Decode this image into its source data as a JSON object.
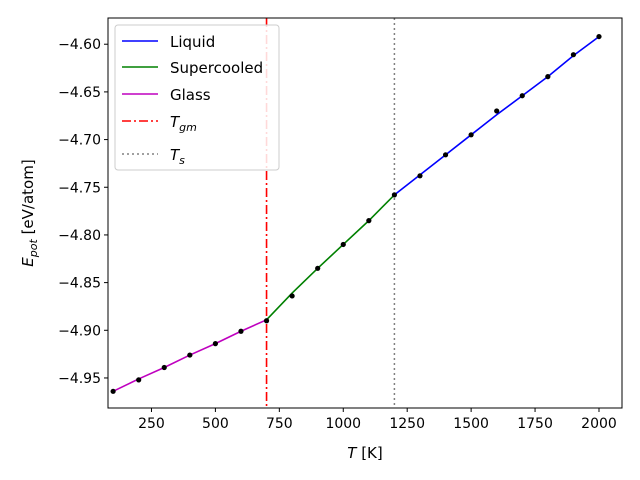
{
  "chart_data": {
    "type": "line",
    "title": "",
    "xlabel": {
      "main": "T",
      "unit": " [K]"
    },
    "ylabel": {
      "main": "E",
      "sub": "pot",
      "unit": " [eV/atom]"
    },
    "xlim": [
      80,
      2090
    ],
    "ylim": [
      -4.9815,
      -4.5725
    ],
    "x_ticks": [
      250,
      500,
      750,
      1000,
      1250,
      1500,
      1750,
      2000
    ],
    "y_ticks": [
      -4.95,
      -4.9,
      -4.85,
      -4.8,
      -4.75,
      -4.7,
      -4.65,
      -4.6
    ],
    "x_tick_labels": [
      "250",
      "500",
      "750",
      "1000",
      "1250",
      "1500",
      "1750",
      "2000"
    ],
    "y_tick_labels": [
      "−4.95",
      "−4.90",
      "−4.85",
      "−4.80",
      "−4.75",
      "−4.70",
      "−4.65",
      "−4.60"
    ],
    "grid": false,
    "legend_position": "top-left",
    "series": [
      {
        "name": "Liquid",
        "color": "#0000ff",
        "x": [
          1200,
          1300,
          1400,
          1500,
          1600,
          1700,
          1800,
          1900,
          2000
        ],
        "y": [
          -4.758,
          -4.737,
          -4.716,
          -4.695,
          -4.674,
          -4.654,
          -4.634,
          -4.612,
          -4.592
        ]
      },
      {
        "name": "Supercooled",
        "color": "#008000",
        "x": [
          700,
          800,
          900,
          1000,
          1100,
          1200
        ],
        "y": [
          -4.889,
          -4.861,
          -4.835,
          -4.81,
          -4.785,
          -4.758
        ]
      },
      {
        "name": "Glass",
        "color": "#bf00bf",
        "x": [
          100,
          200,
          300,
          400,
          500,
          600,
          700
        ],
        "y": [
          -4.964,
          -4.951,
          -4.939,
          -4.926,
          -4.914,
          -4.901,
          -4.889
        ]
      }
    ],
    "points": {
      "color": "#000000",
      "x": [
        100,
        200,
        300,
        400,
        500,
        600,
        700,
        800,
        900,
        1000,
        1100,
        1200,
        1300,
        1400,
        1500,
        1600,
        1700,
        1800,
        1900,
        2000
      ],
      "y": [
        -4.964,
        -4.952,
        -4.939,
        -4.926,
        -4.914,
        -4.901,
        -4.89,
        -4.864,
        -4.835,
        -4.81,
        -4.785,
        -4.758,
        -4.738,
        -4.716,
        -4.695,
        -4.67,
        -4.654,
        -4.634,
        -4.611,
        -4.592
      ]
    },
    "vlines": [
      {
        "name": "Tgm",
        "label_main": "T",
        "label_sub": "gm",
        "x": 700,
        "color": "#ff0000",
        "style": "dashdot"
      },
      {
        "name": "Ts",
        "label_main": "T",
        "label_sub": "s",
        "x": 1200,
        "color": "#808080",
        "style": "dotted"
      }
    ]
  }
}
